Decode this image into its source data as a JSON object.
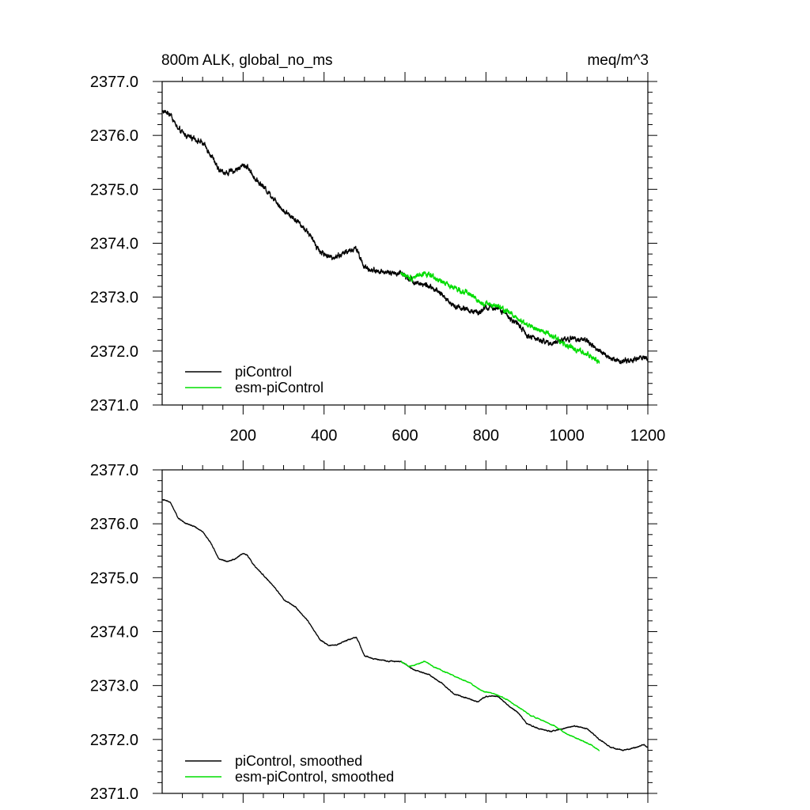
{
  "colors": {
    "piControl": "#000000",
    "esm_piControl": "#00dd00",
    "axis": "#000000",
    "background": "#ffffff"
  },
  "chart_data": [
    {
      "type": "line",
      "title": "800m ALK, global_no_ms",
      "units": "meq/m^3",
      "xlabel": "",
      "ylabel": "",
      "xlim": [
        0,
        1200
      ],
      "ylim": [
        2371.0,
        2377.0
      ],
      "x_ticks": [
        200,
        400,
        600,
        800,
        1000,
        1200
      ],
      "x_tick_labels": [
        "200",
        "400",
        "600",
        "800",
        "1000",
        "1200"
      ],
      "y_ticks": [
        2371,
        2372,
        2373,
        2374,
        2375,
        2376,
        2377
      ],
      "y_tick_labels": [
        "2371.0",
        "2372.0",
        "2373.0",
        "2374.0",
        "2375.0",
        "2376.0",
        "2377.0"
      ],
      "legend_position": "bottom-left",
      "noise": 0.045,
      "series": [
        {
          "name": "piControl",
          "color_key": "piControl",
          "x": [
            1,
            20,
            40,
            60,
            80,
            100,
            120,
            140,
            160,
            180,
            200,
            210,
            230,
            250,
            280,
            300,
            330,
            360,
            390,
            410,
            430,
            460,
            480,
            500,
            520,
            560,
            590,
            620,
            660,
            690,
            720,
            760,
            780,
            800,
            830,
            860,
            880,
            900,
            930,
            960,
            990,
            1020,
            1050,
            1080,
            1110,
            1140,
            1170,
            1190,
            1200
          ],
          "values": [
            2376.45,
            2376.4,
            2376.1,
            2376.0,
            2375.95,
            2375.85,
            2375.65,
            2375.35,
            2375.3,
            2375.35,
            2375.45,
            2375.42,
            2375.2,
            2375.05,
            2374.8,
            2374.6,
            2374.45,
            2374.2,
            2373.85,
            2373.75,
            2373.75,
            2373.85,
            2373.9,
            2373.55,
            2373.5,
            2373.45,
            2373.45,
            2373.3,
            2373.2,
            2373.05,
            2372.85,
            2372.75,
            2372.7,
            2372.8,
            2372.8,
            2372.6,
            2372.5,
            2372.3,
            2372.2,
            2372.15,
            2372.2,
            2372.25,
            2372.2,
            2372.0,
            2371.85,
            2371.8,
            2371.85,
            2371.9,
            2371.85
          ]
        },
        {
          "name": "esm-piControl",
          "color_key": "esm_piControl",
          "x": [
            590,
            610,
            630,
            650,
            670,
            700,
            730,
            760,
            790,
            820,
            850,
            880,
            910,
            940,
            970,
            1000,
            1030,
            1060,
            1080
          ],
          "values": [
            2373.45,
            2373.35,
            2373.4,
            2373.45,
            2373.35,
            2373.25,
            2373.15,
            2373.05,
            2372.9,
            2372.85,
            2372.75,
            2372.6,
            2372.45,
            2372.35,
            2372.25,
            2372.1,
            2372.0,
            2371.9,
            2371.8
          ]
        }
      ]
    },
    {
      "type": "line",
      "title": "",
      "xlabel": "",
      "ylabel": "",
      "xlim": [
        0,
        1200
      ],
      "ylim": [
        2371.0,
        2377.0
      ],
      "x_ticks": [
        200,
        400,
        600,
        800,
        1000,
        1200
      ],
      "x_tick_labels": [],
      "y_ticks": [
        2371,
        2372,
        2373,
        2374,
        2375,
        2376,
        2377
      ],
      "y_tick_labels": [
        "2371.0",
        "2372.0",
        "2373.0",
        "2374.0",
        "2375.0",
        "2376.0",
        "2377.0"
      ],
      "legend_position": "bottom-left",
      "noise": 0.008,
      "series": [
        {
          "name": "piControl, smoothed",
          "color_key": "piControl",
          "x": [
            1,
            20,
            40,
            60,
            80,
            100,
            120,
            140,
            160,
            180,
            200,
            210,
            230,
            250,
            280,
            300,
            330,
            360,
            390,
            410,
            430,
            460,
            480,
            500,
            520,
            560,
            590,
            620,
            660,
            690,
            720,
            760,
            780,
            800,
            830,
            860,
            880,
            900,
            930,
            960,
            990,
            1020,
            1050,
            1080,
            1110,
            1140,
            1170,
            1190,
            1200
          ],
          "values": [
            2376.45,
            2376.4,
            2376.1,
            2376.0,
            2375.95,
            2375.85,
            2375.65,
            2375.35,
            2375.3,
            2375.35,
            2375.45,
            2375.42,
            2375.2,
            2375.05,
            2374.8,
            2374.6,
            2374.45,
            2374.2,
            2373.85,
            2373.75,
            2373.75,
            2373.85,
            2373.9,
            2373.55,
            2373.5,
            2373.45,
            2373.45,
            2373.3,
            2373.2,
            2373.05,
            2372.85,
            2372.75,
            2372.7,
            2372.8,
            2372.8,
            2372.6,
            2372.5,
            2372.3,
            2372.2,
            2372.15,
            2372.2,
            2372.25,
            2372.2,
            2372.0,
            2371.85,
            2371.8,
            2371.85,
            2371.9,
            2371.85
          ]
        },
        {
          "name": "esm-piControl, smoothed",
          "color_key": "esm_piControl",
          "x": [
            590,
            610,
            630,
            650,
            670,
            700,
            730,
            760,
            790,
            820,
            850,
            880,
            910,
            940,
            970,
            1000,
            1030,
            1060,
            1080
          ],
          "values": [
            2373.45,
            2373.35,
            2373.4,
            2373.45,
            2373.35,
            2373.25,
            2373.15,
            2373.05,
            2372.9,
            2372.85,
            2372.75,
            2372.6,
            2372.45,
            2372.35,
            2372.25,
            2372.1,
            2372.0,
            2371.9,
            2371.8
          ]
        }
      ]
    }
  ]
}
